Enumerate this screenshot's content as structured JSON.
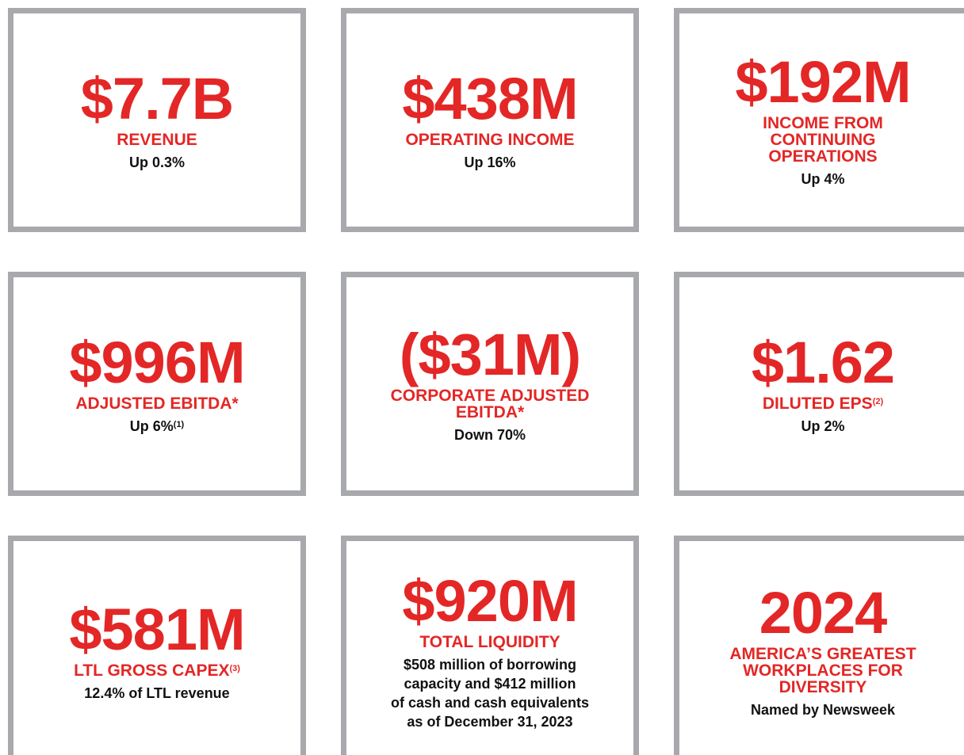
{
  "cards": [
    {
      "value": "$7.7B",
      "label": [
        "REVENUE"
      ],
      "note": [
        "Up 0.3%"
      ]
    },
    {
      "value": "$438M",
      "label": [
        "OPERATING INCOME"
      ],
      "note": [
        "Up 16%"
      ]
    },
    {
      "value": "$192M",
      "label": [
        "INCOME FROM",
        "CONTINUING",
        "OPERATIONS"
      ],
      "note": [
        "Up 4%"
      ]
    },
    {
      "value": "$996M",
      "label": [
        "ADJUSTED EBITDA*"
      ],
      "note": [
        "Up 6%"
      ],
      "note_sup": "(1)"
    },
    {
      "value": "($31M)",
      "label": [
        "CORPORATE ADJUSTED",
        "EBITDA*"
      ],
      "note": [
        "Down 70%"
      ]
    },
    {
      "value": "$1.62",
      "label": [
        "DILUTED EPS"
      ],
      "label_sup": "(2)",
      "note": [
        "Up 2%"
      ]
    },
    {
      "value": "$581M",
      "label": [
        "LTL GROSS CAPEX"
      ],
      "label_sup": "(3)",
      "note": [
        "12.4% of LTL revenue"
      ]
    },
    {
      "value": "$920M",
      "label": [
        "TOTAL LIQUIDITY"
      ],
      "note": [
        "$508 million of borrowing",
        "capacity and $412 million",
        "of cash and cash equivalents",
        "as of December 31, 2023"
      ]
    },
    {
      "value": "2024",
      "label": [
        "AMERICA’S GREATEST",
        "WORKPLACES FOR",
        "DIVERSITY"
      ],
      "note": [
        "Named by Newsweek"
      ]
    }
  ]
}
